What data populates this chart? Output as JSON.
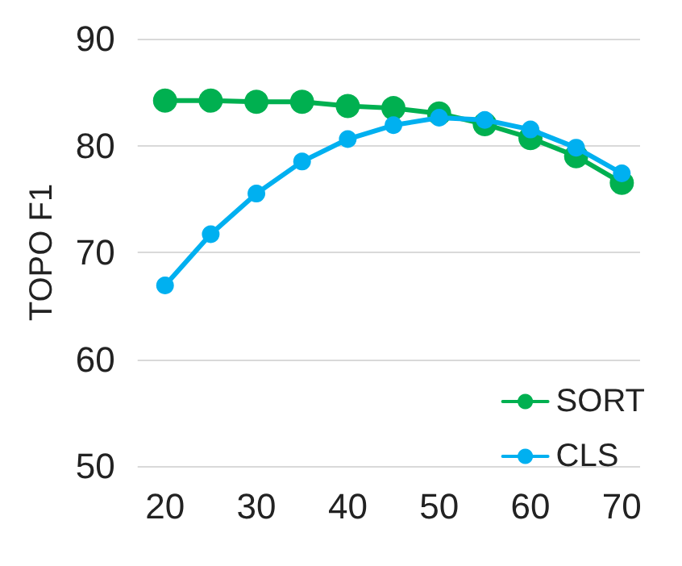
{
  "chart_data": {
    "type": "line",
    "ylabel": "TOPO F1",
    "x": [
      20,
      25,
      30,
      35,
      40,
      45,
      50,
      55,
      60,
      65,
      70
    ],
    "series": [
      {
        "name": "SORT",
        "color": "#00b050",
        "values": [
          84.2,
          84.2,
          84.1,
          84.1,
          83.7,
          83.5,
          83.0,
          82.0,
          80.7,
          79.0,
          76.5
        ]
      },
      {
        "name": "CLS",
        "color": "#00b0f0",
        "values": [
          66.9,
          71.7,
          75.5,
          78.5,
          80.6,
          81.9,
          82.6,
          82.4,
          81.5,
          79.8,
          77.4
        ]
      }
    ],
    "xlim": [
      17,
      72
    ],
    "xticks": [
      20,
      30,
      40,
      50,
      60,
      70
    ],
    "ylim": [
      50,
      90
    ],
    "yticks": [
      50,
      60,
      70,
      80,
      90
    ],
    "grid": "y",
    "legend": "bottom right",
    "marker": "circle",
    "line_style": "solid"
  }
}
